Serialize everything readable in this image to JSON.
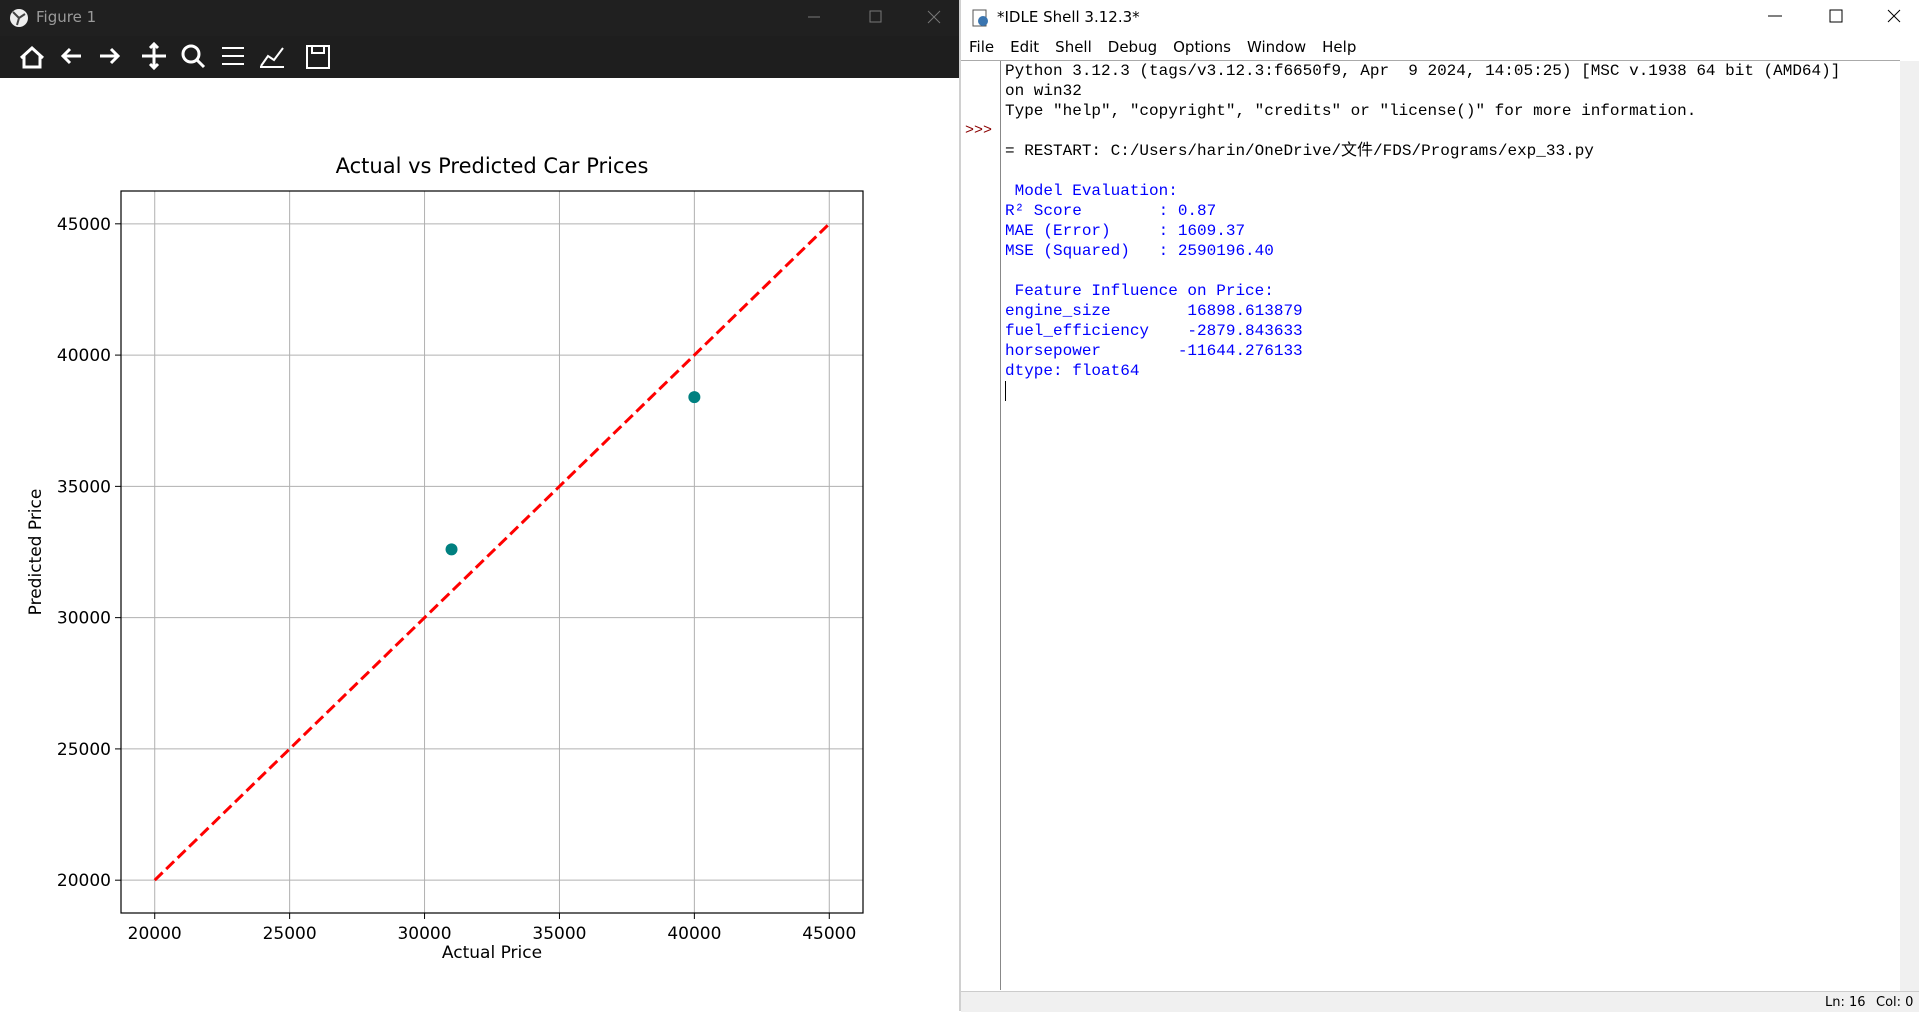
{
  "figure_window": {
    "title": "Figure 1"
  },
  "chart_data": {
    "type": "scatter",
    "title": "Actual vs Predicted Car Prices",
    "x_label": "Actual Price",
    "y_label": "Predicted Price",
    "series": [
      {
        "type": "scatter",
        "color": "#008080",
        "x": [
          31000,
          40000
        ],
        "values": [
          32600,
          38400
        ]
      },
      {
        "type": "line",
        "color": "#ff0000",
        "linestyle": "dashed",
        "x": [
          20000,
          45000
        ],
        "values": [
          20000,
          45000
        ]
      }
    ],
    "xlim": [
      18750,
      46250
    ],
    "ylim": [
      18750,
      46250
    ],
    "xticks": [
      20000,
      25000,
      30000,
      35000,
      40000,
      45000
    ],
    "yticks": [
      20000,
      25000,
      30000,
      35000,
      40000,
      45000
    ],
    "grid": true
  },
  "shell_window": {
    "title": "*IDLE Shell 3.12.3*",
    "menu": [
      "File",
      "Edit",
      "Shell",
      "Debug",
      "Options",
      "Window",
      "Help"
    ],
    "prompt": ">>>",
    "blocks": [
      {
        "color": "#000000",
        "lines": [
          "Python 3.12.3 (tags/v3.12.3:f6650f9, Apr  9 2024, 14:05:25) [MSC v.1938 64 bit (AMD64)]",
          "on win32",
          "Type \"help\", \"copyright\", \"credits\" or \"license()\" for more information."
        ]
      },
      {
        "color": "#000000",
        "lines": [
          "= RESTART: C:/Users/harin/OneDrive/文件/FDS/Programs/exp_33.py"
        ]
      },
      {
        "color": "#0000ff",
        "lines": [
          " Model Evaluation:",
          "R² Score        : 0.87",
          "MAE (Error)     : 1609.37",
          "MSE (Squared)   : 2590196.40"
        ]
      },
      {
        "color": "#0000ff",
        "lines": [
          " Feature Influence on Price:",
          "engine_size        16898.613879",
          "fuel_efficiency    -2879.843633",
          "horsepower        -11644.276133",
          "dtype: float64"
        ]
      }
    ],
    "status": [
      "Ln: 16",
      "Col: 0"
    ]
  }
}
